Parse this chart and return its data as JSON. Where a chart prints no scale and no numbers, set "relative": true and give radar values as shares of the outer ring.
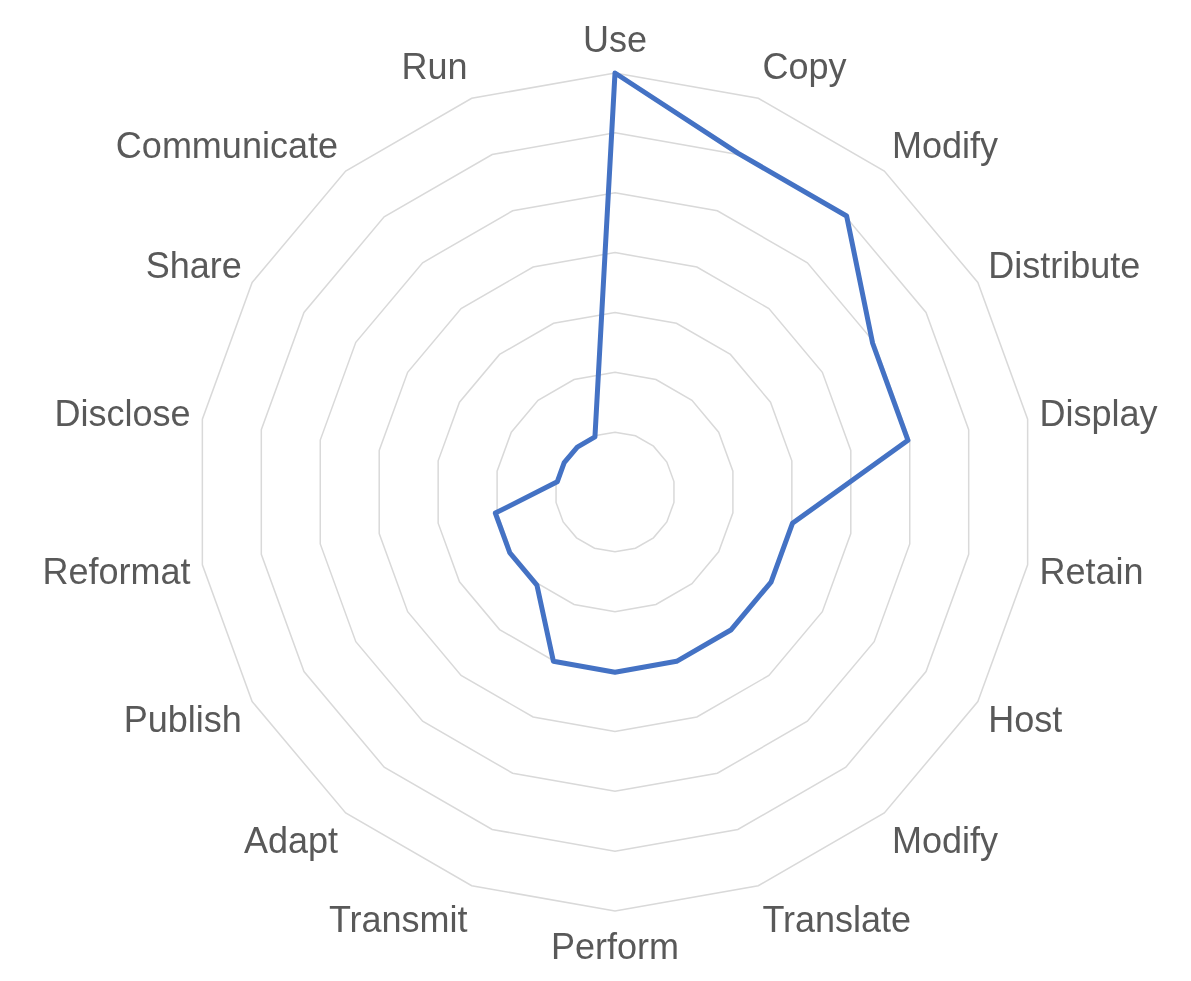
{
  "chart_data": {
    "type": "radar",
    "relative": true,
    "grid": true,
    "categories": [
      "Use",
      "Copy",
      "Modify",
      "Distribute",
      "Display",
      "Retain",
      "Host",
      "Modify",
      "Translate",
      "Perform",
      "Transmit",
      "Adapt",
      "Publish",
      "Reformat",
      "Disclose",
      "Share",
      "Communicate",
      "Run"
    ],
    "series": [
      {
        "color": "#4472c4",
        "values": [
          1,
          0.86,
          0.86,
          0.71,
          0.71,
          0.43,
          0.43,
          0.43,
          0.43,
          0.43,
          0.43,
          0.29,
          0.29,
          0.29,
          0.14,
          0.14,
          0.14,
          0.14
        ]
      }
    ]
  }
}
